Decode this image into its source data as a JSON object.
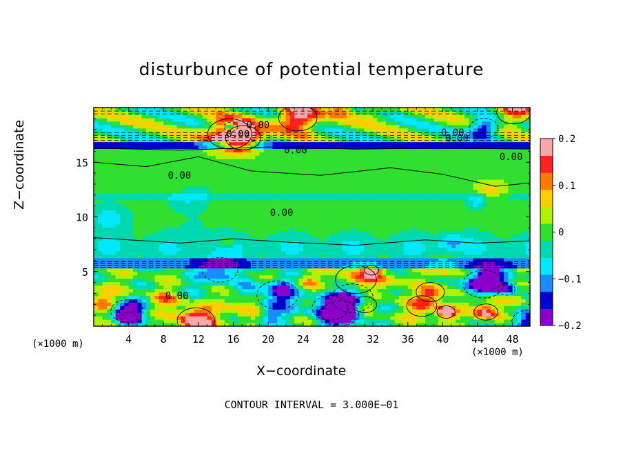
{
  "chart_data": {
    "type": "heatmap",
    "title": "disturbunce of potential temperature",
    "xlabel": "X−coordinate",
    "ylabel": "Z−coordinate",
    "x_unit": "(×1000 m)",
    "z_unit": "(×1000 m)",
    "xlim": [
      0,
      50
    ],
    "ylim": [
      0,
      20
    ],
    "x_ticks": [
      "4",
      "8",
      "12",
      "16",
      "20",
      "24",
      "28",
      "32",
      "36",
      "40",
      "44",
      "48"
    ],
    "y_ticks": [
      "5",
      "10",
      "15"
    ],
    "colorbar": {
      "range": [
        -0.2,
        0.2
      ],
      "tick_labels": [
        "0.2",
        "0.1",
        "0",
        "−0.1",
        "−0.2"
      ],
      "colors": [
        "#f8a8a8",
        "#ff2020",
        "#ff7a00",
        "#ffd000",
        "#b0f000",
        "#30e030",
        "#00d8b0",
        "#00e8ff",
        "#1a8cff",
        "#0000d0",
        "#8a00c8"
      ]
    },
    "contour_labels": [
      "0.00",
      "0.00",
      "0.00",
      "0.00",
      "0.00",
      "0.00",
      "0.00",
      "0.00",
      "0.00"
    ],
    "contour_interval": "CONTOUR INTERVAL = 3.000E−01"
  }
}
